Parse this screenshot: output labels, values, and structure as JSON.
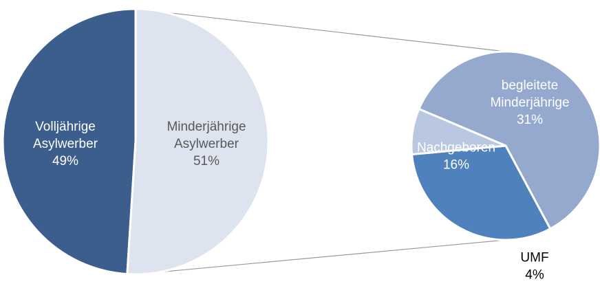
{
  "chart_data": {
    "type": "pie",
    "main": {
      "categories": [
        "Volljährige Asylwerber",
        "Minderjährige Asylwerber"
      ],
      "values": [
        49,
        51
      ],
      "value_labels": [
        "49%",
        "51%"
      ],
      "colors": [
        "#3c5e8c",
        "#dde3ef"
      ]
    },
    "detail": {
      "categories": [
        "begleitete Minderjährige",
        "Nachgeboren",
        "UMF"
      ],
      "values": [
        31,
        16,
        4
      ],
      "value_labels": [
        "31%",
        "16%",
        "4%"
      ],
      "colors": [
        "#95a9cf",
        "#4f81bd",
        "#b9c7e0"
      ]
    }
  }
}
